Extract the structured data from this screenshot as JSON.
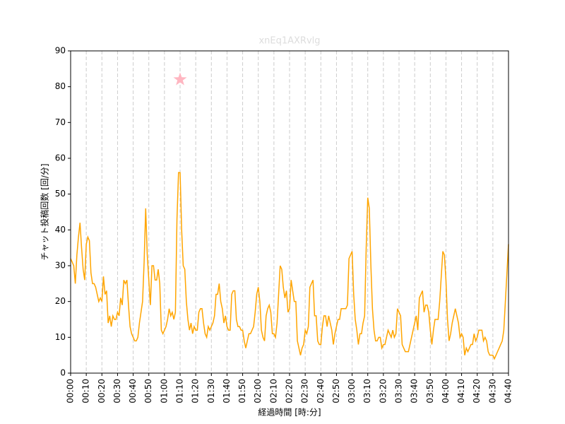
{
  "chart_data": {
    "type": "line",
    "title": "xnEq1AXRvlg",
    "xlabel": "経過時間 [時:分]",
    "ylabel": "チャット投稿回数 [回/分]",
    "x": [
      0,
      1,
      2,
      3,
      4,
      5,
      6,
      7,
      8,
      9,
      10,
      11,
      12,
      13,
      14,
      15,
      16,
      17,
      18,
      19,
      20,
      21,
      22,
      23,
      24,
      25,
      26,
      27,
      28,
      29,
      30,
      31,
      32,
      33,
      34,
      35,
      36,
      37,
      38,
      39,
      40,
      41,
      42,
      43,
      44,
      45,
      46,
      47,
      48,
      49,
      50,
      51,
      52,
      53,
      54,
      55,
      56,
      57,
      58,
      59,
      60,
      61,
      62,
      63,
      64,
      65,
      66,
      67,
      68,
      69,
      70,
      71,
      72,
      73,
      74,
      75,
      76,
      77,
      78,
      79,
      80,
      81,
      82,
      83,
      84,
      85,
      86,
      87,
      88,
      89,
      90,
      91,
      92,
      93,
      94,
      95,
      96,
      97,
      98,
      99,
      100,
      101,
      102,
      103,
      104,
      105,
      106,
      107,
      108,
      109,
      110,
      111,
      112,
      113,
      114,
      115,
      116,
      117,
      118,
      119,
      120,
      121,
      122,
      123,
      124,
      125,
      126,
      127,
      128,
      129,
      130,
      131,
      132,
      133,
      134,
      135,
      136,
      137,
      138,
      139,
      140,
      141,
      142,
      143,
      144,
      145,
      146,
      147,
      148,
      149,
      150,
      151,
      152,
      153,
      154,
      155,
      156,
      157,
      158,
      159,
      160,
      161,
      162,
      163,
      164,
      165,
      166,
      167,
      168,
      169,
      170,
      171,
      172,
      173,
      174,
      175,
      176,
      177,
      178,
      179,
      180,
      181,
      182,
      183,
      184,
      185,
      186,
      187,
      188,
      189,
      190,
      191,
      192,
      193,
      194,
      195,
      196,
      197,
      198,
      199,
      200,
      201,
      202,
      203,
      204,
      205,
      206,
      207,
      208,
      209,
      210,
      211,
      212,
      213,
      214,
      215,
      216,
      217,
      218,
      219,
      220,
      221,
      222,
      223,
      224,
      225,
      226,
      227,
      228,
      229,
      230,
      231,
      232,
      233,
      234,
      235,
      236,
      237,
      238,
      239,
      240,
      241,
      242,
      243,
      244,
      245,
      246,
      247,
      248,
      249,
      250,
      251,
      252,
      253,
      254,
      255,
      256,
      257,
      258,
      259,
      260,
      261,
      262,
      263,
      264,
      265,
      266,
      267,
      268,
      269,
      270,
      271,
      272,
      273,
      274,
      275,
      276,
      277,
      278,
      279,
      280
    ],
    "series": [
      {
        "color": "#ffa500",
        "values": [
          32,
          31,
          30,
          25,
          33,
          38,
          42,
          35,
          29,
          26,
          36,
          38,
          37,
          28,
          25,
          25,
          24,
          22,
          20,
          21,
          20,
          27,
          22,
          23,
          14,
          16,
          13,
          16,
          15,
          15,
          17,
          16,
          21,
          19,
          26,
          25,
          26,
          19,
          13,
          11,
          10,
          9,
          9,
          10,
          14,
          17,
          20,
          31,
          46,
          33,
          26,
          19,
          30,
          30,
          26,
          26,
          29,
          25,
          12,
          11,
          12,
          13,
          15,
          18,
          16,
          17,
          15,
          17,
          43,
          56,
          56,
          40,
          30,
          29,
          20,
          15,
          12,
          14,
          11,
          13,
          12,
          12,
          17,
          18,
          18,
          14,
          11,
          10,
          13,
          12,
          13,
          14,
          16,
          22,
          22,
          25,
          20,
          18,
          14,
          16,
          13,
          12,
          12,
          22,
          23,
          23,
          15,
          13,
          13,
          12,
          12,
          9,
          7,
          9,
          11,
          11,
          12,
          13,
          17,
          22,
          24,
          20,
          12,
          10,
          9,
          16,
          18,
          19,
          17,
          11,
          11,
          10,
          14,
          22,
          30,
          29,
          24,
          21,
          23,
          17,
          18,
          26,
          23,
          20,
          20,
          9,
          7,
          5,
          7,
          8,
          12,
          11,
          13,
          24,
          25,
          26,
          16,
          16,
          9,
          8,
          8,
          13,
          16,
          16,
          13,
          16,
          14,
          12,
          8,
          11,
          13,
          15,
          15,
          18,
          18,
          18,
          18,
          19,
          32,
          33,
          34,
          22,
          15,
          12,
          8,
          11,
          11,
          14,
          16,
          35,
          49,
          46,
          30,
          18,
          12,
          9,
          9,
          10,
          10,
          7,
          8,
          8,
          10,
          12,
          11,
          10,
          12,
          10,
          11,
          18,
          17,
          16,
          8,
          7,
          6,
          6,
          6,
          8,
          10,
          12,
          14,
          16,
          12,
          21,
          22,
          23,
          17,
          19,
          19,
          17,
          12,
          8,
          12,
          15,
          15,
          15,
          20,
          27,
          34,
          33,
          26,
          15,
          9,
          11,
          14,
          16,
          18,
          16,
          14,
          10,
          11,
          10,
          5,
          7,
          6,
          7,
          8,
          8,
          11,
          9,
          10,
          12,
          12,
          12,
          9,
          10,
          9,
          6,
          5,
          5,
          5,
          4,
          5,
          6,
          7,
          8,
          9,
          12,
          20,
          28,
          36
        ]
      }
    ],
    "highlight": {
      "x": 70,
      "y": 82,
      "color": "#ffb6c1"
    },
    "xlim": [
      0,
      280
    ],
    "xticks": [
      {
        "value": 0,
        "label": "00:00"
      },
      {
        "value": 10,
        "label": "00:10"
      },
      {
        "value": 20,
        "label": "00:20"
      },
      {
        "value": 30,
        "label": "00:30"
      },
      {
        "value": 40,
        "label": "00:40"
      },
      {
        "value": 50,
        "label": "00:50"
      },
      {
        "value": 60,
        "label": "01:00"
      },
      {
        "value": 70,
        "label": "01:10"
      },
      {
        "value": 80,
        "label": "01:20"
      },
      {
        "value": 90,
        "label": "01:30"
      },
      {
        "value": 100,
        "label": "01:40"
      },
      {
        "value": 110,
        "label": "01:50"
      },
      {
        "value": 120,
        "label": "02:00"
      },
      {
        "value": 130,
        "label": "02:10"
      },
      {
        "value": 140,
        "label": "02:20"
      },
      {
        "value": 150,
        "label": "02:30"
      },
      {
        "value": 160,
        "label": "02:40"
      },
      {
        "value": 170,
        "label": "02:50"
      },
      {
        "value": 180,
        "label": "03:00"
      },
      {
        "value": 190,
        "label": "03:10"
      },
      {
        "value": 200,
        "label": "03:20"
      },
      {
        "value": 210,
        "label": "03:30"
      },
      {
        "value": 220,
        "label": "03:40"
      },
      {
        "value": 230,
        "label": "03:50"
      },
      {
        "value": 240,
        "label": "04:00"
      },
      {
        "value": 250,
        "label": "04:10"
      },
      {
        "value": 260,
        "label": "04:20"
      },
      {
        "value": 270,
        "label": "04:30"
      },
      {
        "value": 280,
        "label": "04:40"
      }
    ],
    "ylim": [
      0,
      90
    ],
    "yticks": [
      0,
      10,
      20,
      30,
      40,
      50,
      60,
      70,
      80,
      90
    ],
    "xgrid": true
  }
}
